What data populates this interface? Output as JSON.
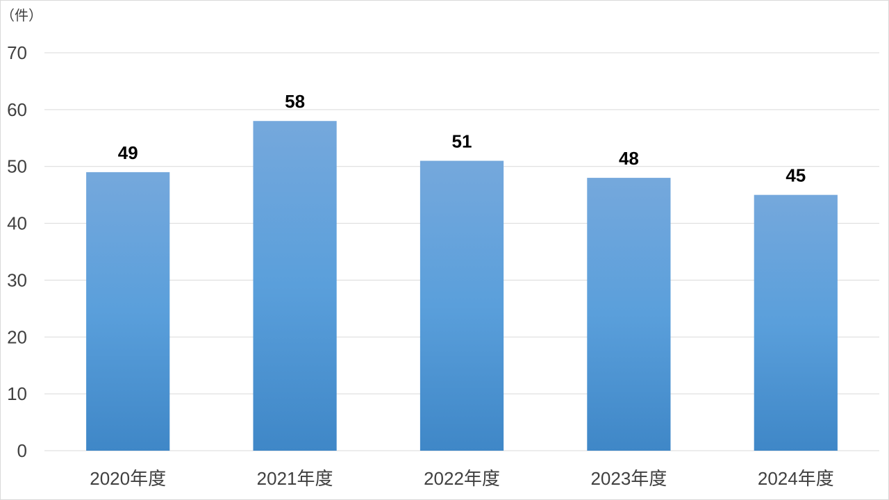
{
  "chart_data": {
    "type": "bar",
    "title": "",
    "unit_label": "（件）",
    "xlabel": "",
    "ylabel": "",
    "categories": [
      "2020年度",
      "2021年度",
      "2022年度",
      "2023年度",
      "2024年度"
    ],
    "values": [
      49,
      58,
      51,
      48,
      45
    ],
    "data_labels": [
      "49",
      "58",
      "51",
      "48",
      "45"
    ],
    "yticks": [
      "0",
      "10",
      "20",
      "30",
      "40",
      "50",
      "60",
      "70"
    ],
    "ylim": [
      0,
      70
    ],
    "grid": true,
    "legend": false,
    "bar_color_top": "#75a8dc",
    "bar_color_bottom": "#3f87c7",
    "grid_color": "#d9d9d9",
    "axis_text_color": "#404040"
  }
}
